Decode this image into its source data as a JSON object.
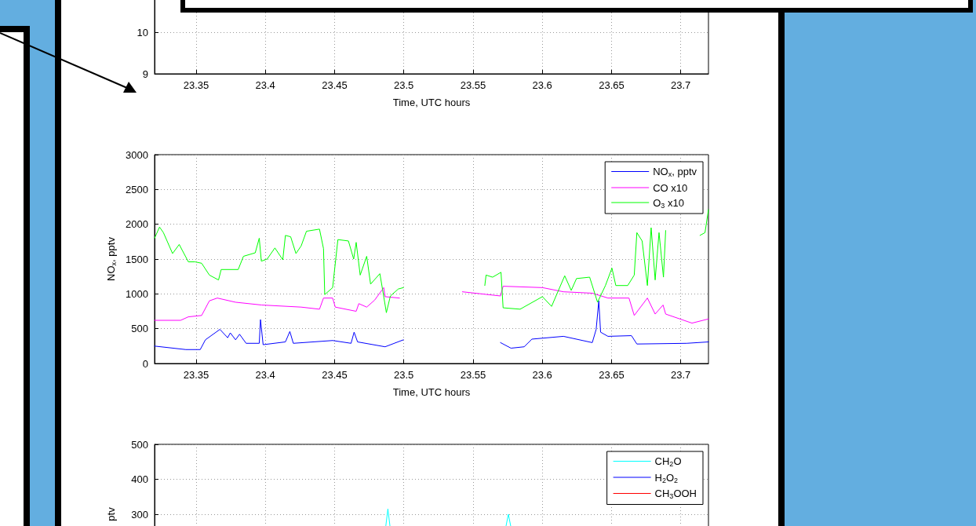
{
  "chart_data": [
    {
      "type": "line",
      "xlabel": "Time, UTC hours",
      "xlim": [
        23.32,
        23.72
      ],
      "xticks": [
        23.35,
        23.4,
        23.45,
        23.5,
        23.55,
        23.6,
        23.65,
        23.7
      ],
      "ylim": [
        9,
        11
      ],
      "yticks": [
        9,
        10
      ],
      "grid": true
    },
    {
      "type": "line",
      "xlabel": "Time, UTC hours",
      "ylabel": "NO$_{x}$, pptv",
      "xlim": [
        23.32,
        23.72
      ],
      "xticks": [
        23.35,
        23.4,
        23.45,
        23.5,
        23.55,
        23.6,
        23.65,
        23.7
      ],
      "ylim": [
        0,
        3000
      ],
      "yticks": [
        0,
        500,
        1000,
        1500,
        2000,
        2500,
        3000
      ],
      "grid": true,
      "legend": "top right",
      "line_style": "solid",
      "series": [
        {
          "name": "NO$_{x}$, pptv",
          "color": "#0000ff",
          "x": [
            23.32,
            23.3426,
            23.353,
            23.3567,
            23.3672,
            23.3728,
            23.3747,
            23.3785,
            23.3814,
            23.3861,
            23.3956,
            23.3965,
            23.3984,
            23.4145,
            23.4177,
            23.4202,
            23.4486,
            23.4619,
            23.4641,
            23.4666,
            23.4865,
            23.4997,
            23.53,
            23.5698,
            23.5774,
            23.5869,
            23.5925,
            23.6153,
            23.6361,
            23.6389,
            23.6408,
            23.6421,
            23.6474,
            23.6644,
            23.6683,
            23.7043,
            23.72
          ],
          "values": [
            250,
            200,
            200,
            340,
            490,
            370,
            440,
            340,
            420,
            290,
            290,
            630,
            270,
            310,
            460,
            290,
            330,
            290,
            450,
            310,
            240,
            340,
            null,
            300,
            220,
            240,
            350,
            390,
            300,
            490,
            900,
            450,
            390,
            400,
            280,
            290,
            310
          ]
        },
        {
          "name": "CO x10",
          "color": "#ff00ff",
          "x": [
            23.32,
            23.3388,
            23.3444,
            23.354,
            23.3596,
            23.3653,
            23.3785,
            23.3974,
            23.4259,
            23.4391,
            23.442,
            23.4486,
            23.4505,
            23.4656,
            23.4675,
            23.4732,
            23.4789,
            23.4855,
            23.4865,
            23.4969,
            23.52,
            23.5423,
            23.5698,
            23.5717,
            23.6001,
            23.6153,
            23.6361,
            23.6474,
            23.6626,
            23.6664,
            23.6759,
            23.6815,
            23.6872,
            23.6891,
            23.7081,
            23.72
          ],
          "values": [
            620,
            620,
            670,
            690,
            900,
            940,
            880,
            840,
            810,
            780,
            940,
            940,
            810,
            750,
            860,
            810,
            910,
            1090,
            960,
            940,
            null,
            1030,
            970,
            1110,
            1090,
            1030,
            1010,
            940,
            940,
            690,
            940,
            710,
            840,
            710,
            580,
            640
          ]
        },
        {
          "name": "O$_{3}$ x10",
          "color": "#00ff00",
          "x": [
            23.32,
            23.3236,
            23.3264,
            23.333,
            23.3378,
            23.3444,
            23.3492,
            23.354,
            23.3596,
            23.3662,
            23.3681,
            23.3804,
            23.3842,
            23.3927,
            23.3956,
            23.3971,
            23.4013,
            23.4069,
            23.4126,
            23.4145,
            23.4183,
            23.4221,
            23.4259,
            23.4297,
            23.4391,
            23.442,
            23.4429,
            23.4486,
            23.4524,
            23.46,
            23.4638,
            23.4656,
            23.4685,
            23.4732,
            23.476,
            23.4827,
            23.4846,
            23.4874,
            23.4903,
            23.496,
            23.4997,
            23.53,
            23.5585,
            23.5594,
            23.5641,
            23.5702,
            23.5717,
            23.584,
            23.6001,
            23.6067,
            23.6162,
            23.6209,
            23.6247,
            23.6342,
            23.6399,
            23.6456,
            23.6503,
            23.6531,
            23.6617,
            23.6664,
            23.6683,
            23.6721,
            23.6759,
            23.6786,
            23.6815,
            23.6843,
            23.6875,
            23.6891,
            23.7,
            23.7139,
            23.7175,
            23.72
          ],
          "values": [
            1800,
            1960,
            1880,
            1580,
            1710,
            1460,
            1460,
            1440,
            1270,
            1200,
            1350,
            1350,
            1540,
            1590,
            1800,
            1470,
            1500,
            1660,
            1490,
            1840,
            1820,
            1580,
            1690,
            1900,
            1930,
            1650,
            990,
            1090,
            1780,
            1760,
            1500,
            1740,
            1270,
            1540,
            1140,
            1290,
            1070,
            730,
            970,
            1070,
            1090,
            null,
            1120,
            1270,
            1240,
            1310,
            800,
            780,
            960,
            820,
            1260,
            1050,
            1220,
            1240,
            880,
            1120,
            1370,
            1120,
            1120,
            1270,
            1880,
            1760,
            1120,
            1950,
            1200,
            1880,
            1240,
            1910,
            null,
            1840,
            1880,
            2210
          ]
        }
      ]
    },
    {
      "type": "line",
      "ylabel": "ptv",
      "tick_labels": "y",
      "xlim": [
        23.32,
        23.72
      ],
      "xticks": [
        23.35,
        23.4,
        23.45,
        23.5,
        23.55,
        23.6,
        23.65,
        23.7
      ],
      "ylim": [
        0,
        500
      ],
      "yticks": [
        300,
        400,
        500
      ],
      "grid": true,
      "legend": "top right",
      "line_style": "solid",
      "series": [
        {
          "name": "CH$_{2}$O",
          "color": "#00ffff",
          "x": [
            23.4865,
            23.4885,
            23.4905,
            23.53,
            23.573,
            23.5755,
            23.578
          ],
          "values": [
            250,
            315,
            250,
            null,
            250,
            300,
            250
          ]
        },
        {
          "name": "H$_{2}$O$_{2}$",
          "color": "#0000ff"
        },
        {
          "name": "CH$_{3}$OOH",
          "color": "#ff0000"
        }
      ]
    }
  ]
}
